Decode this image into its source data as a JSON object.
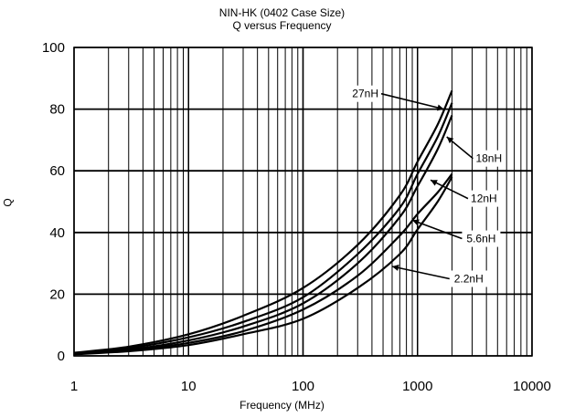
{
  "chart_data": {
    "type": "line",
    "title": "NIN-HK (0402 Case Size)",
    "subtitle": "Q versus Frequency",
    "xlabel": "Frequency (MHz)",
    "ylabel": "Q",
    "xscale": "log",
    "xlim": [
      1,
      10000
    ],
    "ylim": [
      0,
      100
    ],
    "x_ticks": [
      "1",
      "10",
      "100",
      "1000",
      "10000"
    ],
    "y_ticks": [
      "0",
      "20",
      "40",
      "60",
      "80",
      "100"
    ],
    "grid": true,
    "series": [
      {
        "name": "27nH",
        "x": [
          1,
          3,
          10,
          30,
          100,
          300,
          700,
          1000,
          1500,
          2000
        ],
        "y": [
          1,
          3,
          7,
          13,
          22,
          36,
          52,
          63,
          75,
          86
        ]
      },
      {
        "name": "18nH",
        "x": [
          1,
          3,
          10,
          30,
          100,
          300,
          700,
          1000,
          1500,
          2000
        ],
        "y": [
          0.8,
          2.5,
          6,
          11,
          19,
          33,
          48,
          59,
          71,
          82
        ]
      },
      {
        "name": "12nH",
        "x": [
          1,
          3,
          10,
          30,
          100,
          300,
          700,
          1000,
          1500,
          2000
        ],
        "y": [
          0.7,
          2,
          5,
          9.5,
          17,
          30,
          45,
          55,
          67,
          78
        ]
      },
      {
        "name": "5.6nH",
        "x": [
          1,
          3,
          10,
          30,
          100,
          300,
          700,
          1000,
          1500,
          2000
        ],
        "y": [
          0.6,
          1.8,
          4.2,
          8,
          15,
          26,
          39,
          46,
          53,
          59
        ]
      },
      {
        "name": "2.2nH",
        "x": [
          1,
          3,
          10,
          30,
          100,
          300,
          700,
          1000,
          1500,
          2000
        ],
        "y": [
          0.5,
          1.5,
          3.5,
          7,
          12,
          22,
          33,
          41,
          50,
          58
        ]
      }
    ],
    "annotations": [
      {
        "text": "27nH",
        "x": 350,
        "y": 85,
        "ax": 1700,
        "ay": 80
      },
      {
        "text": "18nH",
        "x": 4200,
        "y": 64,
        "ax": 1800,
        "ay": 71
      },
      {
        "text": "12nH",
        "x": 3800,
        "y": 51,
        "ax": 1300,
        "ay": 57
      },
      {
        "text": "5.6nH",
        "x": 3600,
        "y": 38,
        "ax": 900,
        "ay": 44
      },
      {
        "text": "2.2nH",
        "x": 2800,
        "y": 25,
        "ax": 600,
        "ay": 29
      }
    ]
  }
}
